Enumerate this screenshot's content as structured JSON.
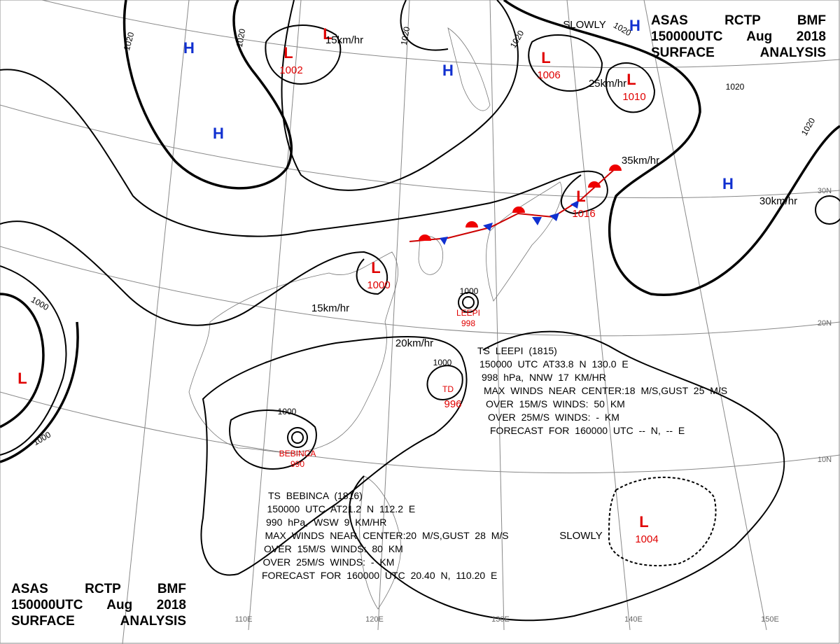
{
  "title_top": [
    "ASAS RCTP BMF",
    "150000UTC Aug 2018",
    "SURFACE ANALYSIS"
  ],
  "title_bottom": [
    "ASAS RCTP BMF",
    "150000UTC Aug 2018",
    "SURFACE ANALYSIS"
  ],
  "pressure_systems": [
    {
      "type": "H"
    },
    {
      "type": "H"
    },
    {
      "type": "H"
    },
    {
      "type": "H"
    },
    {
      "type": "H"
    },
    {
      "type": "L"
    },
    {
      "type": "L",
      "pressure": "1002"
    },
    {
      "type": "L",
      "pressure": "1006"
    },
    {
      "type": "L",
      "pressure": "1010"
    },
    {
      "type": "L",
      "pressure": "1016"
    },
    {
      "type": "L",
      "pressure": "1000"
    },
    {
      "type": "L"
    },
    {
      "type": "L",
      "pressure": "1004"
    }
  ],
  "isobar_labels": [
    "1020",
    "1020",
    "1020",
    "1020",
    "1020",
    "1020",
    "1020",
    "1000",
    "1000",
    "1000",
    "1000",
    "1000"
  ],
  "motion_labels": [
    "15km/hr",
    "SLOWLY",
    "25km/hr",
    "35km/hr",
    "30km/hr",
    "15km/hr",
    "20km/hr",
    "SLOWLY"
  ],
  "storms": [
    {
      "name": "LEEPI",
      "pressure": "998"
    },
    {
      "name": "TD",
      "pressure": "996"
    },
    {
      "name": "BEBINCA",
      "pressure": "990"
    }
  ],
  "advisories": [
    {
      "lines": [
        "TS LEEPI (1815)",
        "150000 UTC AT33.8 N 130.0 E",
        "998 hPa, NNW 17 KM/HR",
        "MAX WINDS NEAR CENTER:18 M/S,GUST 25 M/S",
        "OVER 15M/S WINDS: 50 KM",
        "OVER 25M/S WINDS: - KM",
        "FORECAST FOR 160000 UTC -- N, -- E"
      ]
    },
    {
      "lines": [
        "TS BEBINCA (1816)",
        "150000 UTC AT21.2 N 112.2 E",
        "990 hPa, WSW 9 KM/HR",
        "MAX WINDS NEAR CENTER:20 M/S,GUST 28 M/S",
        "OVER 15M/S WINDS: 80 KM",
        "OVER 25M/S WINDS: - KM",
        "FORECAST FOR 160000 UTC 20.40 N, 110.20 E"
      ]
    }
  ],
  "grid_labels": [
    "110E",
    "120E",
    "130E",
    "140E",
    "150E",
    "10N",
    "20N",
    "30N"
  ]
}
